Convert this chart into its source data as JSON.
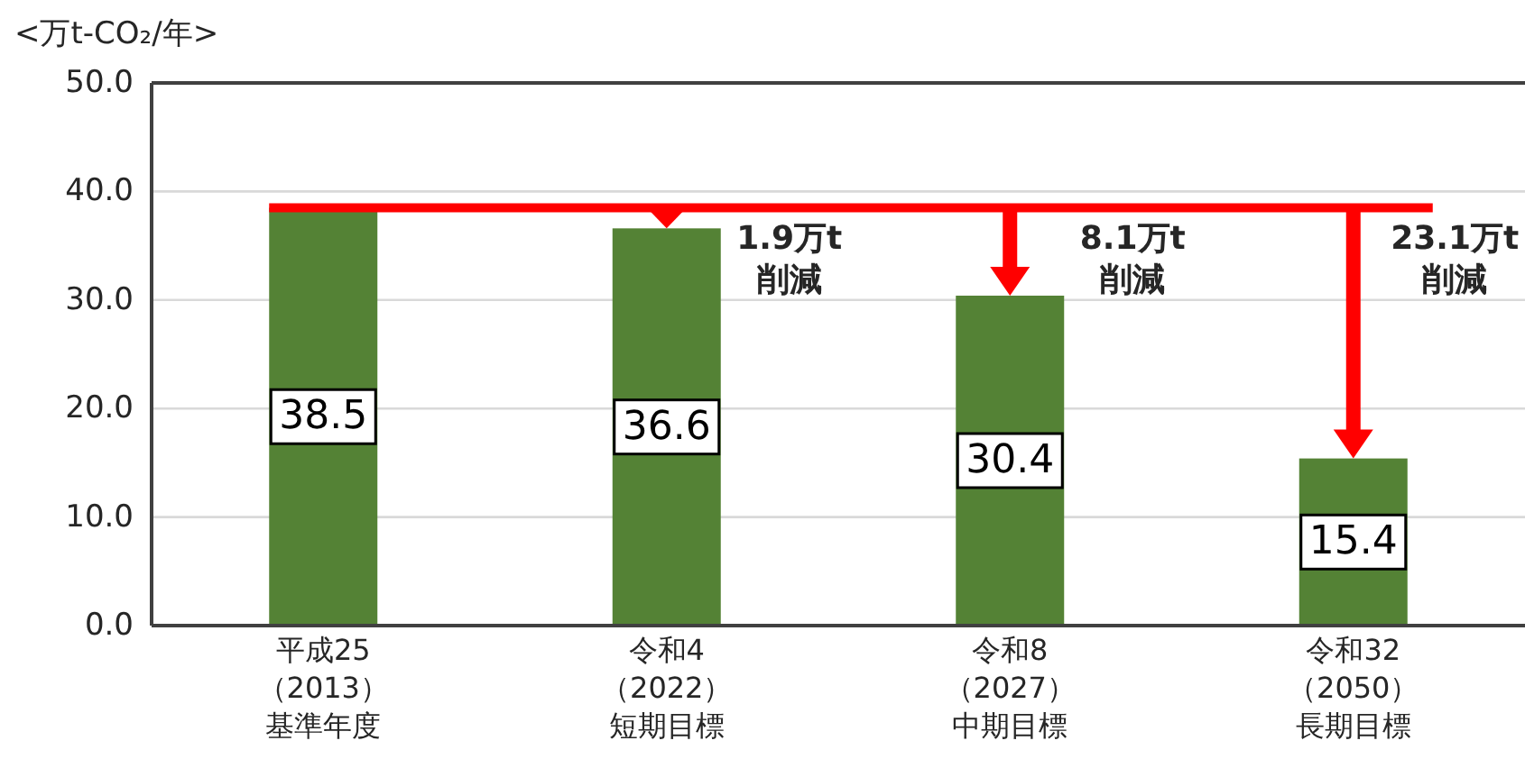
{
  "chart_data": {
    "type": "bar",
    "ylabel": "<万t-CO₂/年>",
    "categories": [
      "平成25（2013）基準年度",
      "令和4（2022）短期目標",
      "令和8（2027）中期目標",
      "令和32（2050）長期目標"
    ],
    "values": [
      38.5,
      36.6,
      30.4,
      15.4
    ],
    "color": "#548235",
    "data_labels": true,
    "ylim": [
      0,
      50
    ],
    "yticks": [
      {
        "value": 0,
        "label": "0.0"
      },
      {
        "value": 10,
        "label": "10.0"
      },
      {
        "value": 20,
        "label": "20.0"
      },
      {
        "value": 30,
        "label": "30.0"
      },
      {
        "value": 40,
        "label": "40.0"
      },
      {
        "value": 50,
        "label": "50.0"
      }
    ],
    "grid": "y",
    "ref_lines": [
      {
        "axis": "y",
        "value": 38.5,
        "color": "#ff0000"
      }
    ],
    "annotations": [
      {
        "text": "1.9万t\n削減",
        "x": "令和4（2022）短期目標",
        "y": 38.5
      },
      {
        "text": "8.1万t\n削減",
        "x": "令和8（2027）中期目標",
        "y": 38.5
      },
      {
        "text": "23.1万t\n削減",
        "x": "令和32（2050）長期目標",
        "y": 38.5
      }
    ]
  }
}
